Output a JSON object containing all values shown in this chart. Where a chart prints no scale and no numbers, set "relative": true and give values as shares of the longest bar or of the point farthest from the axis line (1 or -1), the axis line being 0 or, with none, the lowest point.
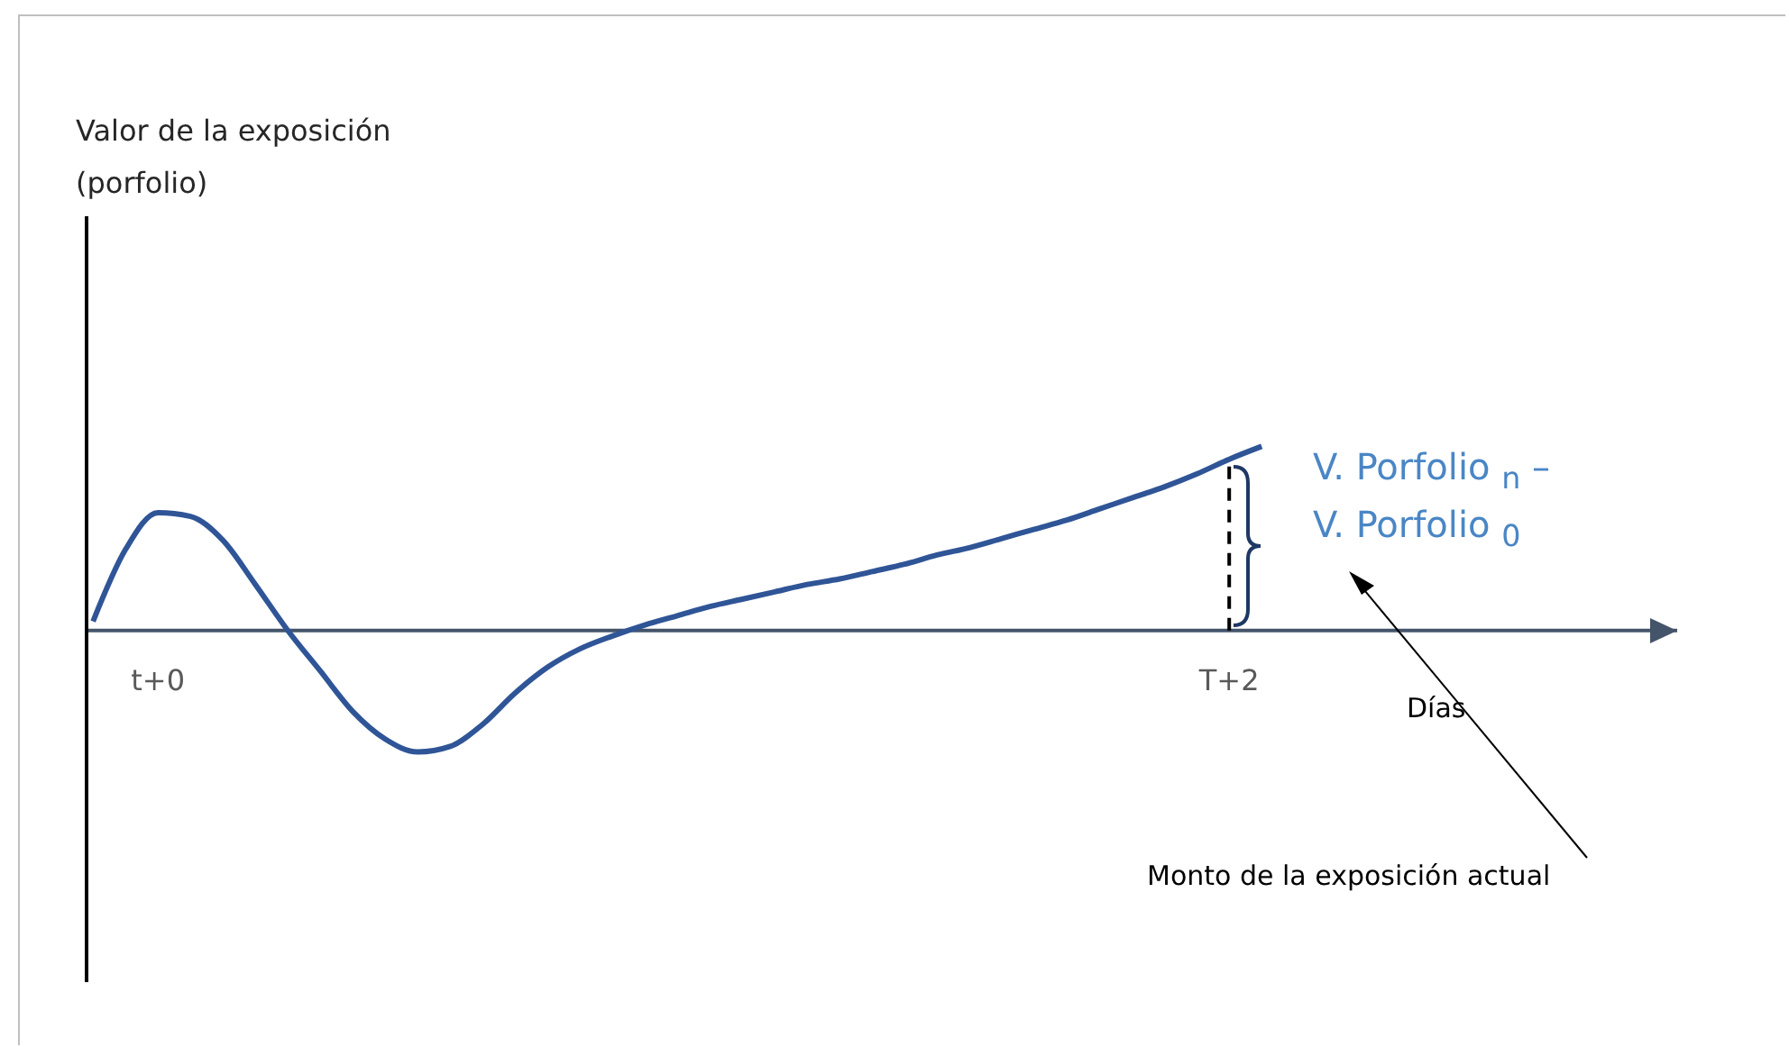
{
  "chart_data": {
    "type": "line",
    "relative": true,
    "xlabel": "Días",
    "categories": [
      null,
      null,
      "t+0",
      null,
      null,
      null,
      null,
      null,
      null,
      null,
      null,
      null,
      null,
      null,
      null,
      null,
      null,
      null,
      null,
      null,
      null,
      null,
      null,
      null,
      null,
      null,
      null,
      null,
      null,
      null,
      null,
      null,
      null,
      null,
      null,
      "T+2",
      null
    ],
    "series": [
      {
        "color": "#2f5597",
        "values": [
          0.05,
          0.44,
          0.64,
          0.62,
          0.49,
          0.25,
          0,
          -0.22,
          -0.44,
          -0.59,
          -0.66,
          -0.63,
          -0.51,
          -0.34,
          -0.2,
          -0.1,
          -0.03,
          0.03,
          0.08,
          0.13,
          0.17,
          0.21,
          0.25,
          0.28,
          0.32,
          0.36,
          0.41,
          0.45,
          0.5,
          0.55,
          0.6,
          0.66,
          0.72,
          0.78,
          0.85,
          0.93,
          1
        ]
      }
    ],
    "ref_lines": [
      {
        "axis": "x",
        "value": "T+2",
        "line_style": "dashed",
        "color": "#000000"
      }
    ],
    "annotations": [
      "Valor de la exposición (porfolio)",
      "V. Porfolio $_{n}$ –",
      "V. Porfolio $_{0}$",
      "Monto de la exposición actual"
    ],
    "marker": "none",
    "line_style": "solid"
  }
}
